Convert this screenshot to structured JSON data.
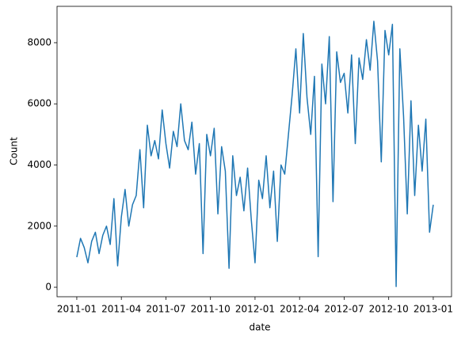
{
  "chart_data": {
    "type": "line",
    "xlabel": "date",
    "ylabel": "Count",
    "x": [
      0,
      0.25,
      0.5,
      0.75,
      1,
      1.25,
      1.5,
      1.75,
      2,
      2.25,
      2.5,
      2.75,
      3,
      3.25,
      3.5,
      3.75,
      4,
      4.25,
      4.5,
      4.75,
      5,
      5.25,
      5.5,
      5.75,
      6,
      6.25,
      6.5,
      6.75,
      7,
      7.25,
      7.5,
      7.75,
      8,
      8.25,
      8.5,
      8.75,
      9,
      9.25,
      9.5,
      9.75,
      10,
      10.25,
      10.5,
      10.75,
      11,
      11.25,
      11.5,
      11.75,
      12,
      12.25,
      12.5,
      12.75,
      13,
      13.25,
      13.5,
      13.75,
      14,
      14.25,
      14.5,
      14.75,
      15,
      15.25,
      15.5,
      15.75,
      16,
      16.25,
      16.5,
      16.75,
      17,
      17.25,
      17.5,
      17.75,
      18,
      18.25,
      18.5,
      18.75,
      19,
      19.25,
      19.5,
      19.75,
      20,
      20.25,
      20.5,
      20.75,
      21,
      21.25,
      21.5,
      21.75,
      22,
      22.25,
      22.5,
      22.75,
      23,
      23.25,
      23.5,
      23.75,
      24
    ],
    "series": [
      {
        "name": "Count",
        "color": "#1f77b4",
        "values": [
          985,
          1600,
          1300,
          800,
          1500,
          1800,
          1100,
          1700,
          2000,
          1400,
          2900,
          700,
          2300,
          3200,
          2000,
          2700,
          3000,
          4500,
          2600,
          5300,
          4300,
          4800,
          4200,
          5800,
          4700,
          3900,
          5100,
          4600,
          6000,
          4800,
          4500,
          5400,
          3700,
          4700,
          1100,
          5000,
          4300,
          5200,
          2400,
          4600,
          3800,
          620,
          4300,
          3000,
          3600,
          2500,
          3900,
          2200,
          800,
          3500,
          2900,
          4300,
          2600,
          3800,
          1500,
          4000,
          3700,
          5000,
          6300,
          7800,
          5700,
          8300,
          6200,
          5000,
          6900,
          1000,
          7300,
          6000,
          8200,
          2800,
          7700,
          6700,
          7000,
          5700,
          7600,
          4700,
          7500,
          6800,
          8100,
          7100,
          8700,
          7400,
          4100,
          8400,
          7600,
          8600,
          22,
          7800,
          5600,
          2400,
          6100,
          3000,
          5300,
          3800,
          5500,
          1800,
          2700
        ]
      }
    ],
    "xlim": [
      -1.33,
      25.23
    ],
    "xticks": [
      {
        "value": 0,
        "label": "2011-01"
      },
      {
        "value": 3,
        "label": "2011-04"
      },
      {
        "value": 6,
        "label": "2011-07"
      },
      {
        "value": 9,
        "label": "2011-10"
      },
      {
        "value": 12,
        "label": "2012-01"
      },
      {
        "value": 15,
        "label": "2012-04"
      },
      {
        "value": 18,
        "label": "2012-07"
      },
      {
        "value": 21,
        "label": "2012-10"
      },
      {
        "value": 24,
        "label": "2013-01"
      }
    ],
    "ylim": [
      -310,
      9190
    ],
    "yticks": [
      0,
      2000,
      4000,
      6000,
      8000
    ]
  }
}
